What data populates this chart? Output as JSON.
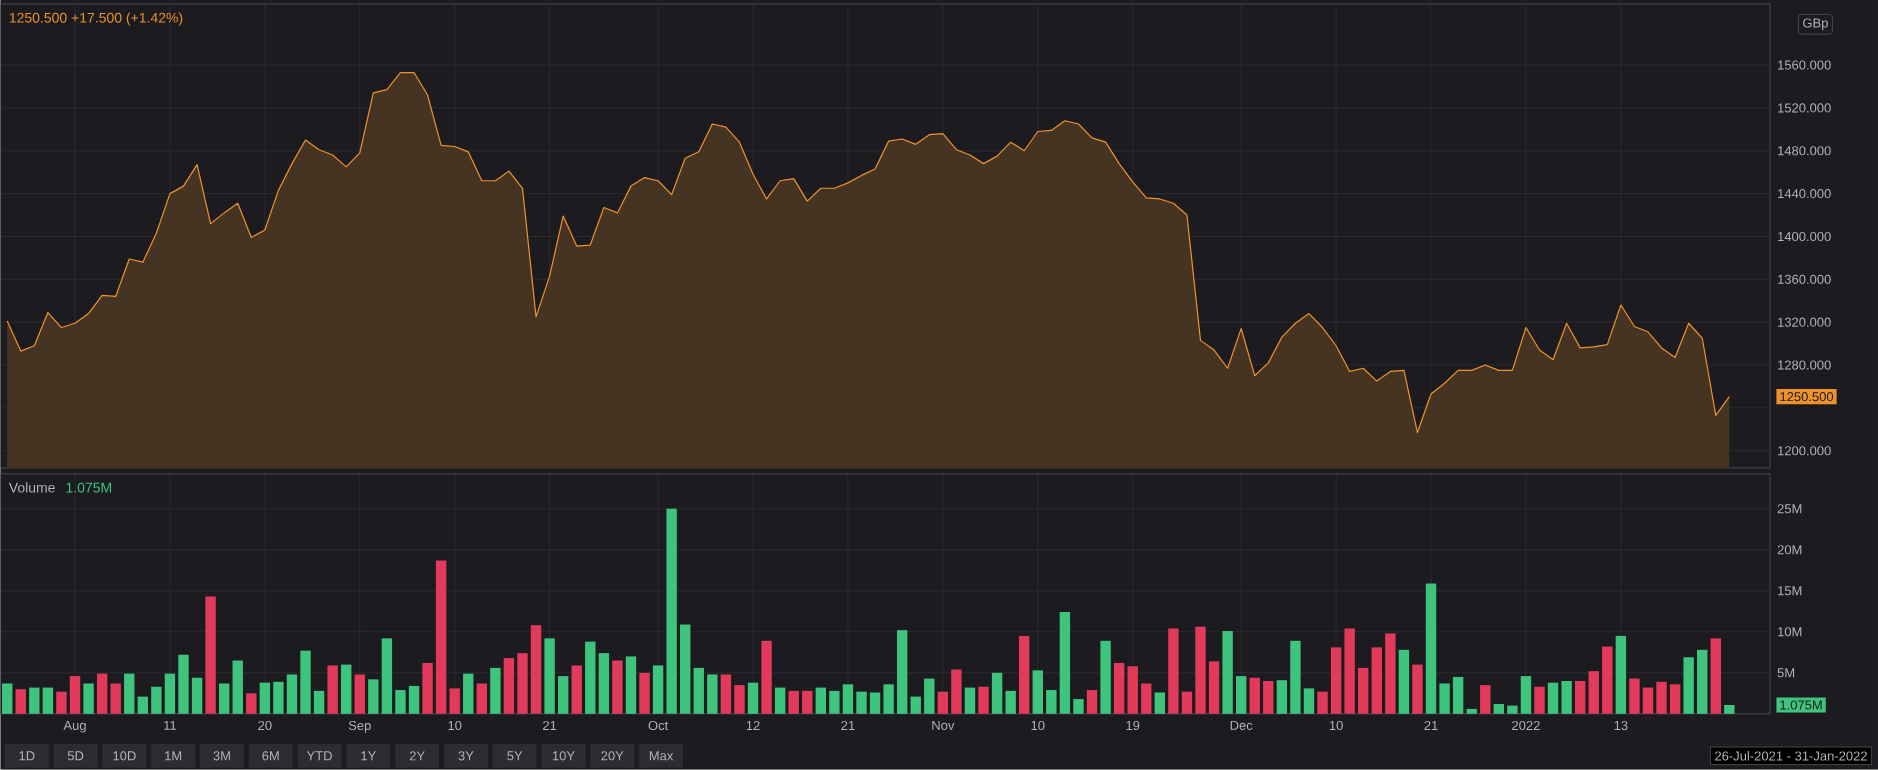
{
  "chart_data": [
    {
      "type": "area",
      "subtitle": "1250.500 +17.500 (+1.42%)",
      "ylabel": "GBp",
      "color": "#f0922b",
      "grid": true,
      "tick_labels": "y",
      "categories": [
        null,
        null,
        null,
        null,
        null,
        null,
        null,
        null,
        null,
        null,
        null,
        null,
        null,
        null,
        null,
        null,
        null,
        null,
        null,
        null,
        null,
        null,
        null,
        null,
        null,
        null,
        null,
        null,
        null,
        null,
        null,
        null,
        null,
        null,
        null,
        null,
        null,
        null,
        null,
        null,
        null,
        null,
        null,
        null,
        null,
        null,
        null,
        null,
        null,
        null,
        null,
        null,
        null,
        null,
        null,
        null,
        null,
        null,
        null,
        null,
        null,
        null,
        null,
        null,
        null,
        null,
        null,
        null,
        null,
        null,
        null,
        null,
        null,
        null,
        null,
        null,
        null,
        null,
        null,
        null,
        null,
        null,
        null,
        null,
        null,
        null,
        null,
        null,
        null,
        null,
        null,
        null,
        null,
        null,
        null,
        null,
        null,
        null,
        null,
        null,
        null,
        null,
        null,
        null,
        null,
        null,
        null,
        null,
        null,
        null,
        null,
        null,
        null,
        null,
        null,
        null,
        null,
        null,
        null,
        null,
        null,
        null,
        null,
        null,
        null,
        null,
        null,
        null
      ],
      "values": [
        1321,
        1293,
        1298,
        1329,
        1315,
        1319,
        1328,
        1345,
        1344,
        1379,
        1376,
        1403,
        1440,
        1447,
        1467,
        1412,
        1422,
        1431,
        1399,
        1406,
        1443,
        1468,
        1490,
        1481,
        1476,
        1465,
        1478,
        1534,
        1537,
        1553,
        1553,
        1532,
        1485,
        1484,
        1479,
        1452,
        1452,
        1461,
        1445,
        1325,
        1363,
        1419,
        1391,
        1392,
        1427,
        1422,
        1447,
        1455,
        1452,
        1439,
        1473,
        1479,
        1505,
        1502,
        1488,
        1458,
        1435,
        1452,
        1454,
        1433,
        1445,
        1445,
        1450,
        1457,
        1463,
        1489,
        1491,
        1486,
        1495,
        1496,
        1481,
        1476,
        1468,
        1475,
        1488,
        1480,
        1498,
        1499,
        1508,
        1505,
        1492,
        1488,
        1468,
        1451,
        1436,
        1435,
        1431,
        1420,
        1303,
        1294,
        1277,
        1314,
        1270,
        1282,
        1306,
        1319,
        1328,
        1315,
        1298,
        1274,
        1277,
        1265,
        1274,
        1275,
        1217,
        1253,
        1263,
        1275,
        1275,
        1280,
        1275,
        1275,
        1315,
        1294,
        1285,
        1319,
        1296,
        1297,
        1299,
        1336,
        1316,
        1311,
        1296,
        1287,
        1319,
        1305,
        1233,
        1250.5
      ],
      "ylim": [
        1184,
        1617
      ],
      "yticks": [
        {
          "value": 1200,
          "label": "1200.000"
        },
        {
          "value": 1240,
          "label": null
        },
        {
          "value": 1280,
          "label": "1280.000"
        },
        {
          "value": 1320,
          "label": "1320.000"
        },
        {
          "value": 1360,
          "label": "1360.000"
        },
        {
          "value": 1400,
          "label": "1400.000"
        },
        {
          "value": 1440,
          "label": "1440.000"
        },
        {
          "value": 1480,
          "label": "1480.000"
        },
        {
          "value": 1520,
          "label": "1520.000"
        },
        {
          "value": 1560,
          "label": "1560.000"
        }
      ],
      "annotations": [
        "1250.500"
      ]
    },
    {
      "type": "bar",
      "title": "Volume",
      "subtitle": "1.075M",
      "grid": true,
      "categories": [
        null,
        null,
        null,
        null,
        null,
        "Aug",
        null,
        null,
        null,
        null,
        null,
        null,
        "11",
        null,
        null,
        null,
        null,
        null,
        null,
        "20",
        null,
        null,
        null,
        null,
        null,
        null,
        "Sep",
        null,
        null,
        null,
        null,
        null,
        null,
        "10",
        null,
        null,
        null,
        null,
        null,
        null,
        "21",
        null,
        null,
        null,
        null,
        null,
        null,
        null,
        "Oct",
        null,
        null,
        null,
        null,
        null,
        null,
        "12",
        null,
        null,
        null,
        null,
        null,
        null,
        "21",
        null,
        null,
        null,
        null,
        null,
        null,
        "Nov",
        null,
        null,
        null,
        null,
        null,
        null,
        "10",
        null,
        null,
        null,
        null,
        null,
        null,
        "19",
        null,
        null,
        null,
        null,
        null,
        null,
        null,
        "Dec",
        null,
        null,
        null,
        null,
        null,
        null,
        "10",
        null,
        null,
        null,
        null,
        null,
        null,
        "21",
        null,
        null,
        null,
        null,
        null,
        null,
        "2022",
        null,
        null,
        null,
        null,
        null,
        null,
        "13",
        null,
        null,
        null,
        null,
        null,
        null,
        null,
        null
      ],
      "values": [
        3.7,
        3.0,
        3.2,
        3.2,
        2.7,
        4.6,
        3.7,
        4.9,
        3.7,
        4.9,
        2.1,
        3.3,
        4.9,
        7.2,
        4.4,
        14.3,
        3.7,
        6.5,
        2.5,
        3.8,
        3.9,
        4.8,
        7.7,
        2.8,
        5.9,
        6.0,
        4.8,
        4.2,
        9.2,
        2.9,
        3.4,
        6.2,
        18.7,
        3.1,
        4.9,
        3.7,
        5.6,
        6.8,
        7.4,
        10.8,
        9.2,
        4.6,
        5.9,
        8.8,
        7.4,
        6.5,
        7.0,
        5.0,
        5.9,
        25.0,
        10.9,
        5.6,
        4.8,
        4.8,
        3.5,
        3.8,
        8.9,
        3.2,
        2.8,
        2.8,
        3.2,
        2.8,
        3.6,
        2.7,
        2.6,
        3.6,
        10.2,
        2.1,
        4.3,
        2.7,
        5.4,
        3.2,
        3.3,
        5.0,
        2.8,
        9.5,
        5.3,
        2.9,
        12.4,
        1.8,
        2.9,
        8.9,
        6.2,
        5.8,
        3.7,
        2.6,
        10.4,
        2.7,
        10.6,
        6.4,
        10.1,
        4.6,
        4.4,
        4.0,
        4.1,
        8.9,
        3.1,
        2.7,
        8.1,
        10.4,
        5.6,
        8.1,
        9.8,
        7.8,
        6.0,
        15.9,
        3.7,
        4.5,
        0.6,
        3.5,
        1.2,
        1.0,
        4.6,
        3.3,
        3.8,
        4.0,
        4.0,
        5.2,
        8.2,
        9.5,
        4.3,
        3.2,
        3.9,
        3.6,
        6.9,
        7.8,
        9.2,
        1.075
      ],
      "colors": [
        "#3ec47d",
        "#e23a5b",
        "#3ec47d",
        "#3ec47d",
        "#e23a5b",
        "#e23a5b",
        "#3ec47d",
        "#e23a5b",
        "#e23a5b",
        "#3ec47d",
        "#3ec47d",
        "#3ec47d",
        "#3ec47d",
        "#3ec47d",
        "#3ec47d",
        "#e23a5b",
        "#3ec47d",
        "#3ec47d",
        "#e23a5b",
        "#3ec47d",
        "#3ec47d",
        "#3ec47d",
        "#3ec47d",
        "#3ec47d",
        "#e23a5b",
        "#3ec47d",
        "#e23a5b",
        "#3ec47d",
        "#3ec47d",
        "#3ec47d",
        "#3ec47d",
        "#e23a5b",
        "#e23a5b",
        "#e23a5b",
        "#3ec47d",
        "#e23a5b",
        "#3ec47d",
        "#e23a5b",
        "#e23a5b",
        "#e23a5b",
        "#3ec47d",
        "#3ec47d",
        "#e23a5b",
        "#3ec47d",
        "#3ec47d",
        "#e23a5b",
        "#3ec47d",
        "#e23a5b",
        "#3ec47d",
        "#3ec47d",
        "#3ec47d",
        "#3ec47d",
        "#3ec47d",
        "#e23a5b",
        "#e23a5b",
        "#3ec47d",
        "#e23a5b",
        "#3ec47d",
        "#e23a5b",
        "#e23a5b",
        "#3ec47d",
        "#3ec47d",
        "#3ec47d",
        "#3ec47d",
        "#3ec47d",
        "#3ec47d",
        "#3ec47d",
        "#3ec47d",
        "#3ec47d",
        "#e23a5b",
        "#e23a5b",
        "#3ec47d",
        "#e23a5b",
        "#3ec47d",
        "#3ec47d",
        "#e23a5b",
        "#3ec47d",
        "#3ec47d",
        "#3ec47d",
        "#3ec47d",
        "#e23a5b",
        "#3ec47d",
        "#e23a5b",
        "#e23a5b",
        "#e23a5b",
        "#3ec47d",
        "#e23a5b",
        "#e23a5b",
        "#e23a5b",
        "#e23a5b",
        "#3ec47d",
        "#3ec47d",
        "#e23a5b",
        "#e23a5b",
        "#3ec47d",
        "#3ec47d",
        "#3ec47d",
        "#e23a5b",
        "#e23a5b",
        "#e23a5b",
        "#e23a5b",
        "#e23a5b",
        "#e23a5b",
        "#3ec47d",
        "#e23a5b",
        "#3ec47d",
        "#3ec47d",
        "#3ec47d",
        "#3ec47d",
        "#e23a5b",
        "#3ec47d",
        "#3ec47d",
        "#3ec47d",
        "#e23a5b",
        "#3ec47d",
        "#3ec47d",
        "#e23a5b",
        "#e23a5b",
        "#e23a5b",
        "#3ec47d",
        "#e23a5b",
        "#e23a5b",
        "#e23a5b",
        "#e23a5b",
        "#3ec47d",
        "#3ec47d",
        "#e23a5b",
        "#3ec47d"
      ],
      "ylim": [
        0,
        29.25
      ],
      "yticks": [
        {
          "value": 5,
          "label": "5M"
        },
        {
          "value": 10,
          "label": "10M"
        },
        {
          "value": 15,
          "label": "15M"
        },
        {
          "value": 20,
          "label": "20M"
        },
        {
          "value": 25,
          "label": "25M"
        }
      ],
      "annotations": [
        "1.075M",
        "1D",
        "5D",
        "10D",
        "1M",
        "3M",
        "6M",
        "YTD",
        "1Y",
        "2Y",
        "3Y",
        "5Y",
        "10Y",
        "20Y",
        "Max",
        "26-Jul-2021 - 31-Jan-2022"
      ]
    }
  ]
}
